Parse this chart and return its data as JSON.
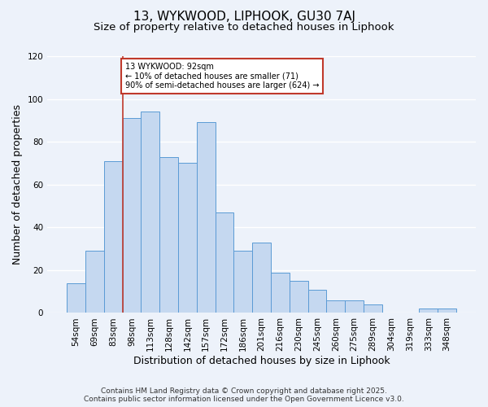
{
  "title": "13, WYKWOOD, LIPHOOK, GU30 7AJ",
  "subtitle": "Size of property relative to detached houses in Liphook",
  "xlabel": "Distribution of detached houses by size in Liphook",
  "ylabel": "Number of detached properties",
  "categories": [
    "54sqm",
    "69sqm",
    "83sqm",
    "98sqm",
    "113sqm",
    "128sqm",
    "142sqm",
    "157sqm",
    "172sqm",
    "186sqm",
    "201sqm",
    "216sqm",
    "230sqm",
    "245sqm",
    "260sqm",
    "275sqm",
    "289sqm",
    "304sqm",
    "319sqm",
    "333sqm",
    "348sqm"
  ],
  "values": [
    14,
    29,
    71,
    91,
    94,
    73,
    70,
    89,
    47,
    29,
    33,
    19,
    15,
    11,
    6,
    6,
    4,
    0,
    0,
    2,
    2
  ],
  "bar_color": "#c5d8f0",
  "bar_edge_color": "#5b9bd5",
  "vline_x_index": 2.5,
  "vline_color": "#c0392b",
  "annotation_text": "13 WYKWOOD: 92sqm\n← 10% of detached houses are smaller (71)\n90% of semi-detached houses are larger (624) →",
  "annotation_box_color": "#ffffff",
  "annotation_box_edge_color": "#c0392b",
  "ylim": [
    0,
    120
  ],
  "yticks": [
    0,
    20,
    40,
    60,
    80,
    100,
    120
  ],
  "footer_text": "Contains HM Land Registry data © Crown copyright and database right 2025.\nContains public sector information licensed under the Open Government Licence v3.0.",
  "bg_color": "#edf2fa",
  "grid_color": "#ffffff",
  "title_fontsize": 11,
  "subtitle_fontsize": 9.5,
  "tick_fontsize": 7.5,
  "label_fontsize": 9,
  "footer_fontsize": 6.5
}
